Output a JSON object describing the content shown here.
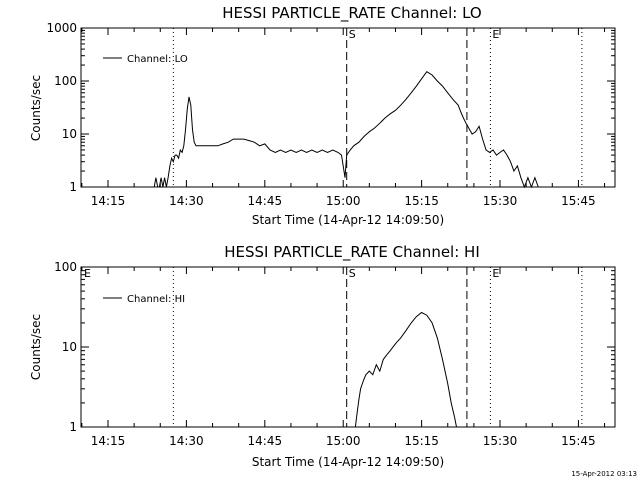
{
  "footer_stamp": "15-Apr-2012 03:13",
  "chart_data": [
    {
      "type": "line",
      "title": "HESSI PARTICLE_RATE Channel: LO",
      "xlabel": "Start Time (14-Apr-12 14:09:50)",
      "ylabel": "Counts/sec",
      "legend_label": "Channel: LO",
      "legend_placement": "top-left",
      "xlim": [
        "14:09:50",
        "15:52:00"
      ],
      "ylim": [
        1,
        1000
      ],
      "yscale": "log",
      "grid": false,
      "x_ticks": [
        "14:15",
        "14:30",
        "14:45",
        "15:00",
        "15:15",
        "15:30",
        "15:45"
      ],
      "y_ticks": [
        "1",
        "10",
        "100",
        "1000"
      ],
      "markers": [
        {
          "time": "14:27:30",
          "style": "dotted",
          "label": ""
        },
        {
          "time": "15:00:40",
          "style": "dashed",
          "label": "S"
        },
        {
          "time": "15:23:40",
          "style": "dashed",
          "label": ""
        },
        {
          "time": "15:28:10",
          "style": "dotted",
          "label": "E"
        },
        {
          "time": "15:45:40",
          "style": "dotted",
          "label": ""
        }
      ],
      "series": [
        {
          "x": [
            "14:23:50",
            "14:24:10",
            "14:24:30",
            "14:24:50",
            "14:25:10",
            "14:25:30",
            "14:25:50",
            "14:26:10",
            "14:26:30",
            "14:26:50",
            "14:27:10",
            "14:27:30",
            "14:27:50",
            "14:28:10",
            "14:28:30",
            "14:28:50",
            "14:29:10",
            "14:29:30",
            "14:29:50",
            "14:30:10",
            "14:30:30",
            "14:30:50",
            "14:31:10",
            "14:31:30",
            "14:31:50",
            "14:32:20",
            "14:32:50",
            "14:33:20",
            "14:33:50",
            "14:34:20",
            "14:35:00",
            "14:36:00",
            "14:37:00",
            "14:38:00",
            "14:39:00",
            "14:40:00",
            "14:41:00",
            "14:42:00",
            "14:43:00",
            "14:44:00",
            "14:45:00",
            "14:46:00",
            "14:47:00",
            "14:48:00",
            "14:49:00",
            "14:50:00",
            "14:51:00",
            "14:52:00",
            "14:53:00",
            "14:54:00",
            "14:55:00",
            "14:56:00",
            "14:57:00",
            "14:58:00",
            "14:59:00",
            "14:59:40",
            "15:00:00",
            "15:00:20",
            "15:00:40",
            "15:01:20",
            "15:02:00",
            "15:03:00",
            "15:04:00",
            "15:05:00",
            "15:06:00",
            "15:07:00",
            "15:08:00",
            "15:09:00",
            "15:10:00",
            "15:11:00",
            "15:12:00",
            "15:13:00",
            "15:14:00",
            "15:15:00",
            "15:16:00",
            "15:17:00",
            "15:18:00",
            "15:19:00",
            "15:20:00",
            "15:21:00",
            "15:22:00",
            "15:22:30",
            "15:23:00",
            "15:23:30",
            "15:24:00",
            "15:24:40",
            "15:25:20",
            "15:26:00",
            "15:26:40",
            "15:27:20",
            "15:28:00",
            "15:28:40",
            "15:29:20",
            "15:30:00",
            "15:30:40",
            "15:31:20",
            "15:32:00",
            "15:32:40",
            "15:33:20",
            "15:34:00",
            "15:34:40",
            "15:35:20",
            "15:36:00",
            "15:36:40",
            "15:37:20",
            "15:38:00"
          ],
          "y": [
            1,
            1.5,
            1,
            1,
            1.5,
            1,
            1.5,
            1,
            1.5,
            2.5,
            3.5,
            3,
            4,
            4,
            3.5,
            5,
            4.5,
            6,
            12,
            30,
            50,
            35,
            12,
            7,
            6,
            6,
            6,
            6,
            6,
            6,
            6,
            6,
            6.5,
            7,
            8,
            8,
            8,
            7.5,
            7,
            6,
            6.5,
            5,
            4.5,
            5,
            4.5,
            5,
            4.5,
            5,
            4.5,
            5,
            4.5,
            5,
            4.5,
            5,
            4.5,
            4,
            2.5,
            1.5,
            4,
            5,
            6,
            7,
            9,
            11,
            13,
            16,
            20,
            24,
            28,
            35,
            45,
            60,
            80,
            110,
            150,
            130,
            100,
            80,
            60,
            45,
            35,
            26,
            20,
            16,
            13,
            10,
            11,
            14,
            8,
            5,
            4.5,
            5,
            4,
            4.5,
            5,
            4,
            3,
            2,
            2.5,
            1.5,
            1,
            1.5,
            1,
            1.5,
            1,
            1
          ]
        }
      ]
    },
    {
      "type": "line",
      "title": "HESSI PARTICLE_RATE Channel: HI",
      "xlabel": "Start Time (14-Apr-12 14:09:50)",
      "ylabel": "Counts/sec",
      "legend_label": "Channel: HI",
      "legend_placement": "top-left",
      "xlim": [
        "14:09:50",
        "15:52:00"
      ],
      "ylim": [
        1,
        100
      ],
      "yscale": "log",
      "grid": false,
      "x_ticks": [
        "14:15",
        "14:30",
        "14:45",
        "15:00",
        "15:15",
        "15:30",
        "15:45"
      ],
      "y_ticks": [
        "1",
        "10",
        "100"
      ],
      "corner_marker": "E",
      "markers": [
        {
          "time": "14:27:30",
          "style": "dotted",
          "label": ""
        },
        {
          "time": "15:00:40",
          "style": "dashed",
          "label": "S"
        },
        {
          "time": "15:23:40",
          "style": "dashed",
          "label": ""
        },
        {
          "time": "15:28:10",
          "style": "dotted",
          "label": "E"
        },
        {
          "time": "15:45:40",
          "style": "dotted",
          "label": ""
        }
      ],
      "series": [
        {
          "x": [
            "15:02:20",
            "15:02:40",
            "15:03:00",
            "15:03:20",
            "15:03:40",
            "15:04:00",
            "15:04:20",
            "15:05:00",
            "15:05:40",
            "15:06:20",
            "15:07:00",
            "15:07:40",
            "15:08:20",
            "15:09:00",
            "15:10:00",
            "15:11:00",
            "15:12:00",
            "15:13:00",
            "15:14:00",
            "15:15:00",
            "15:16:00",
            "15:17:00",
            "15:18:00",
            "15:19:00",
            "15:20:00",
            "15:20:40",
            "15:21:20",
            "15:21:40"
          ],
          "y": [
            1,
            1.5,
            2.2,
            3,
            3.5,
            4,
            4.5,
            5,
            4.5,
            6,
            5,
            7,
            8,
            9,
            11,
            13,
            16,
            20,
            24,
            27,
            25,
            20,
            13,
            7,
            3.5,
            2,
            1.3,
            1
          ]
        }
      ]
    }
  ]
}
